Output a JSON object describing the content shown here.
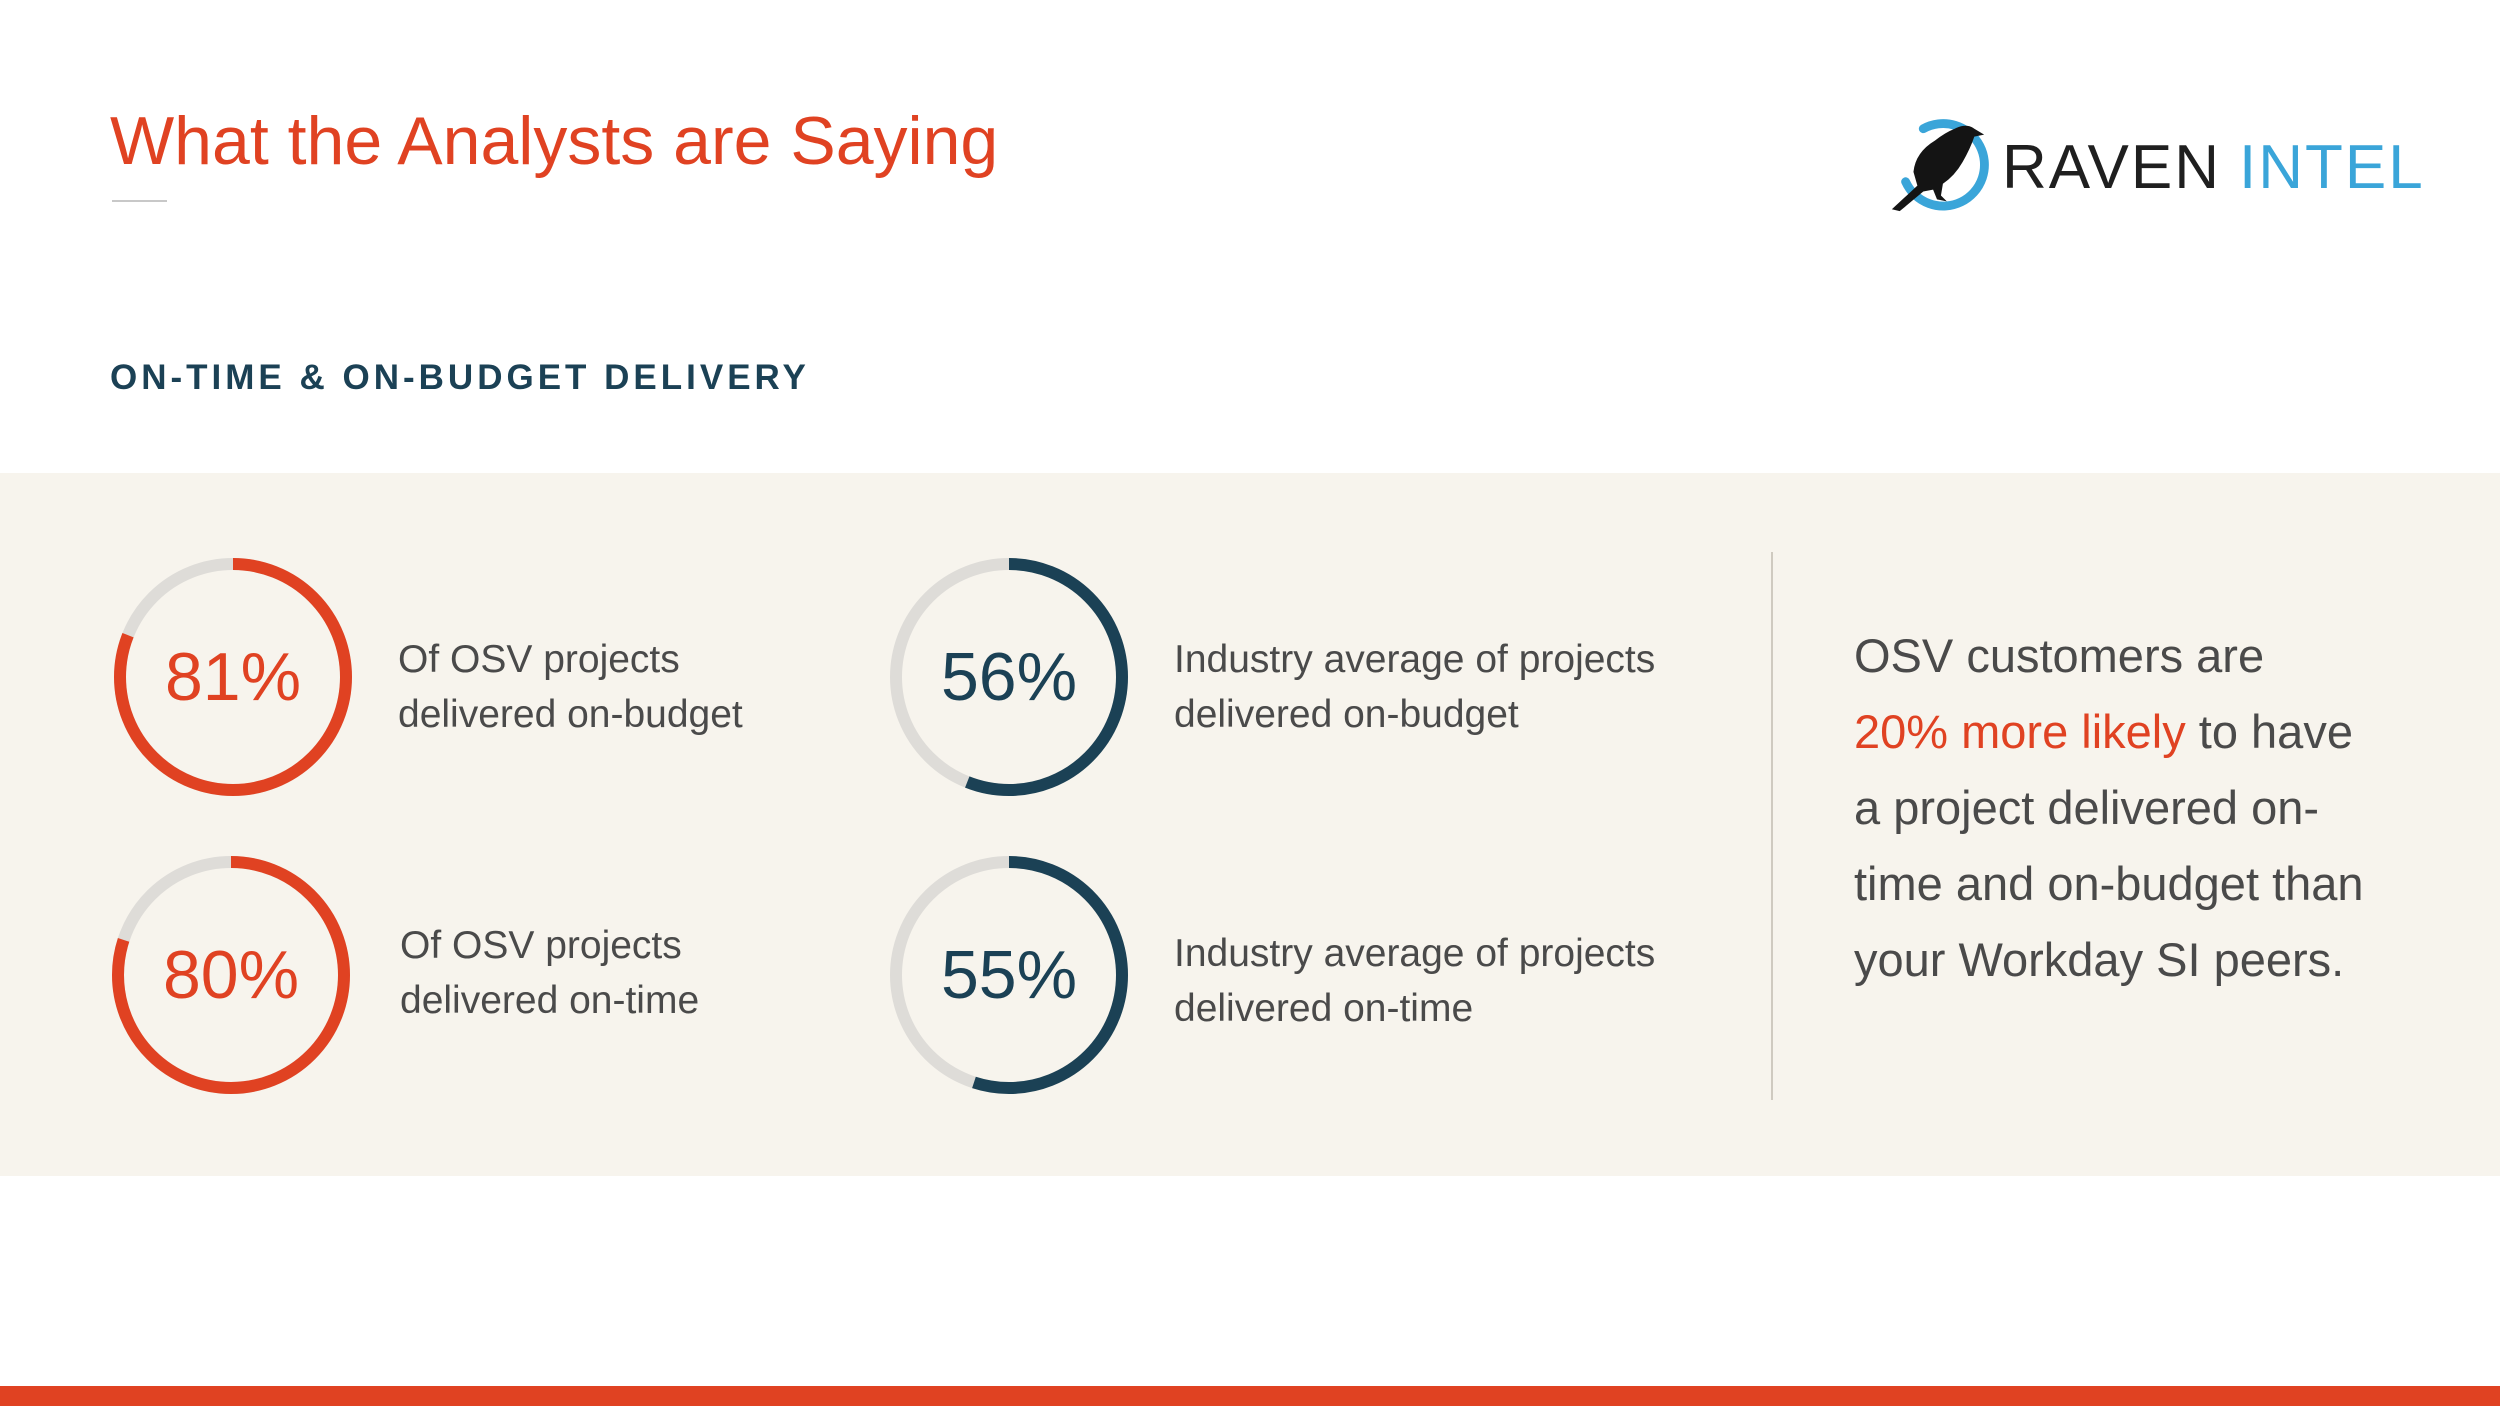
{
  "slide": {
    "title": "What the Analysts are Saying",
    "section_heading": "ON-TIME & ON-BUDGET DELIVERY"
  },
  "logo": {
    "word1": "RAVEN",
    "word2": "INTEL",
    "icon": "raven-bird-icon"
  },
  "stats": [
    {
      "value": "81%",
      "percent": 81,
      "group": "osv",
      "caption_line1": "Of OSV projects",
      "caption_line2": "delivered on-budget"
    },
    {
      "value": "80%",
      "percent": 80,
      "group": "osv",
      "caption_line1": "Of OSV projects",
      "caption_line2": "delivered on-time"
    },
    {
      "value": "56%",
      "percent": 56,
      "group": "industry",
      "caption_line1": "Industry average of projects",
      "caption_line2": "delivered on-budget"
    },
    {
      "value": "55%",
      "percent": 55,
      "group": "industry",
      "caption_line1": "Industry average of projects",
      "caption_line2": "delivered on-time"
    }
  ],
  "callout": {
    "line1": "OSV customers are",
    "line2_highlight": "20% more likely",
    "line2_rest": " to have",
    "line3": "a project delivered on-",
    "line4": "time and on-budget than",
    "line5": "your Workday SI peers."
  },
  "colors": {
    "accent_red": "#e04222",
    "navy": "#1b4155",
    "ring_track": "#dedcd8",
    "band_background": "#f7f4ed",
    "logo_blue": "#3aa5d9"
  }
}
